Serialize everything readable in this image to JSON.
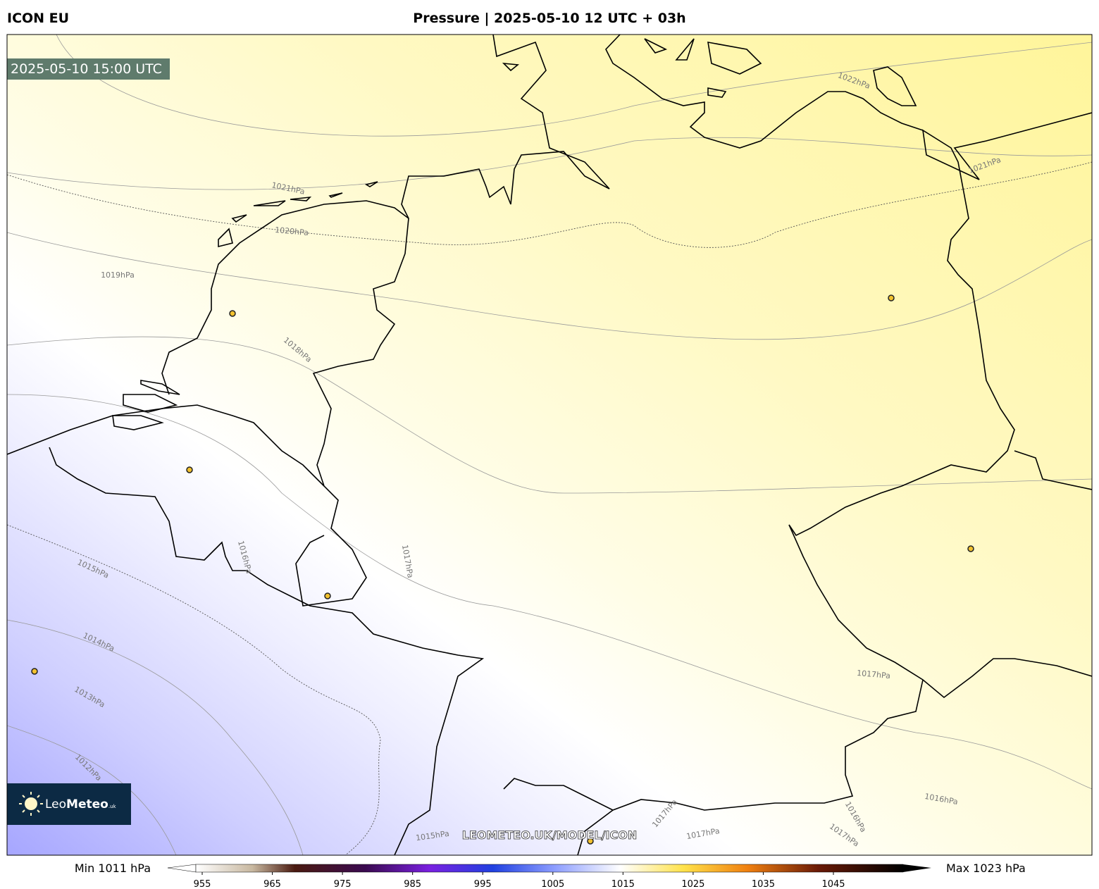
{
  "header": {
    "model": "ICON EU",
    "title": "Pressure | 2025-05-10 12 UTC + 03h"
  },
  "valid_time": "2025-05-10 15:00 UTC",
  "isobar_labels": [
    "1022hPa",
    "1021hPa",
    "1021hPa",
    "1020hPa",
    "1019hPa",
    "1018hPa",
    "1016hPa",
    "1017hPa",
    "1015hPa",
    "1014hPa",
    "1013hPa",
    "1012hPa",
    "1017hPa",
    "1016hPa",
    "1015hPa",
    "1017hPa",
    "1017hPa",
    "1016hPa",
    "1017hPa"
  ],
  "watermark": "LEOMETEO.UK/MODEL/ICON",
  "logo": {
    "part1": "Leo",
    "part2": "Meteo",
    "suffix": ".uk"
  },
  "colorbar": {
    "min_label": "Min 1011 hPa",
    "max_label": "Max 1023 hPa",
    "ticks": [
      955,
      965,
      975,
      985,
      995,
      1005,
      1015,
      1025,
      1035,
      1045
    ]
  }
}
